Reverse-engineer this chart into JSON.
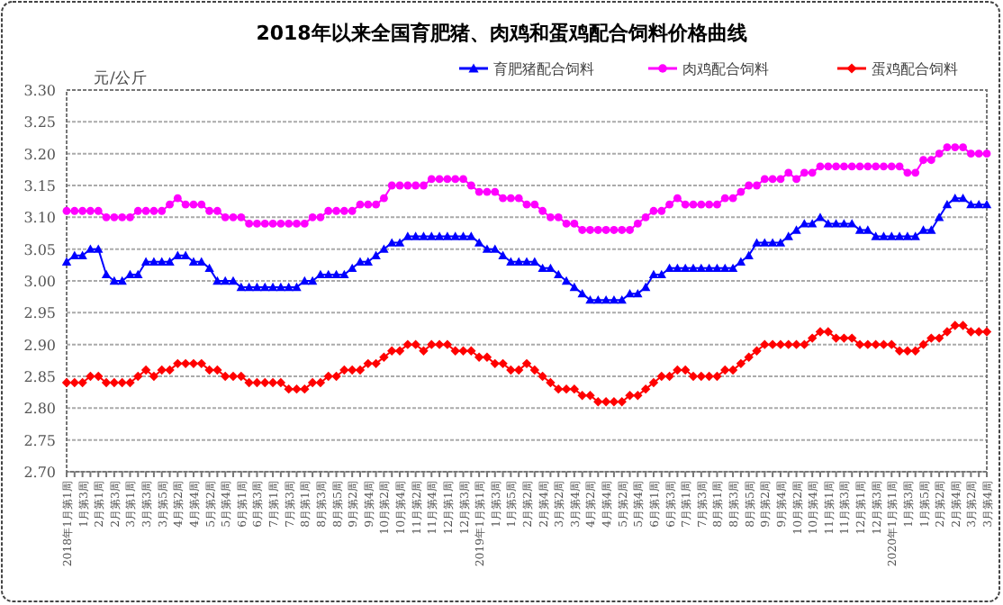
{
  "chart_data": {
    "type": "line",
    "title": "2018年以来全国育肥猪、肉鸡和蛋鸡配合饲料价格曲线",
    "ylabel": "元/公斤",
    "categories": [
      "2018年1月第1周",
      null,
      "1月第3周",
      null,
      "2月第1周",
      null,
      "2月第3周",
      null,
      "3月第1周",
      null,
      "3月第3周",
      null,
      "3月第5周",
      null,
      "4月第2周",
      null,
      "4月第4周",
      null,
      "5月第2周",
      null,
      "5月第4周",
      null,
      "6月第1周",
      null,
      "6月第3周",
      null,
      "7月第1周",
      null,
      "7月第3周",
      null,
      "8月第1周",
      null,
      "8月第3周",
      null,
      "8月第5周",
      null,
      "9月第2周",
      null,
      "9月第4周",
      null,
      "10月第2周",
      null,
      "10月第4周",
      null,
      "11月第2周",
      null,
      "11月第4周",
      null,
      "12月第1周",
      null,
      "12月第3周",
      null,
      "2019年1月第1周",
      null,
      "1月第3周",
      null,
      "1月第5周",
      null,
      "2月第2周",
      null,
      "2月第4周",
      null,
      "3月第2周",
      null,
      "3月第4周",
      null,
      "4月第2周",
      null,
      "4月第4周",
      null,
      "5月第2周",
      null,
      "5月第4周",
      null,
      "6月第1周",
      null,
      "6月第3周",
      null,
      "7月第1周",
      null,
      "7月第3周",
      null,
      "8月第1周",
      null,
      "8月第3周",
      null,
      "8月第5周",
      null,
      "9月第2周",
      null,
      "9月第4周",
      null,
      "10月第2周",
      null,
      "10月第4周",
      null,
      "11月第1周",
      null,
      "11月第3周",
      null,
      "12月第1周",
      null,
      "12月第3周",
      null,
      "2020年1月第1周",
      null,
      "1月第3周",
      null,
      "1月第5周",
      null,
      "2月第2周",
      null,
      "2月第4周",
      null,
      "3月第2周",
      null,
      "3月第4周"
    ],
    "series": [
      {
        "name": "育肥猪配合饲料",
        "color": "#0000ff",
        "marker": "triangle",
        "values": [
          3.03,
          3.04,
          3.04,
          3.05,
          3.05,
          3.01,
          3.0,
          3.0,
          3.01,
          3.01,
          3.03,
          3.03,
          3.03,
          3.03,
          3.04,
          3.04,
          3.03,
          3.03,
          3.02,
          3.0,
          3.0,
          3.0,
          2.99,
          2.99,
          2.99,
          2.99,
          2.99,
          2.99,
          2.99,
          2.99,
          3.0,
          3.0,
          3.01,
          3.01,
          3.01,
          3.01,
          3.02,
          3.03,
          3.03,
          3.04,
          3.05,
          3.06,
          3.06,
          3.07,
          3.07,
          3.07,
          3.07,
          3.07,
          3.07,
          3.07,
          3.07,
          3.07,
          3.06,
          3.05,
          3.05,
          3.04,
          3.03,
          3.03,
          3.03,
          3.03,
          3.02,
          3.02,
          3.01,
          3.0,
          2.99,
          2.98,
          2.97,
          2.97,
          2.97,
          2.97,
          2.97,
          2.98,
          2.98,
          2.99,
          3.01,
          3.01,
          3.02,
          3.02,
          3.02,
          3.02,
          3.02,
          3.02,
          3.02,
          3.02,
          3.02,
          3.03,
          3.04,
          3.06,
          3.06,
          3.06,
          3.06,
          3.07,
          3.08,
          3.09,
          3.09,
          3.1,
          3.09,
          3.09,
          3.09,
          3.09,
          3.08,
          3.08,
          3.07,
          3.07,
          3.07,
          3.07,
          3.07,
          3.07,
          3.08,
          3.08,
          3.1,
          3.12,
          3.13,
          3.13,
          3.12,
          3.12,
          3.12
        ]
      },
      {
        "name": "肉鸡配合饲料",
        "color": "#ff00ff",
        "marker": "circle",
        "values": [
          3.11,
          3.11,
          3.11,
          3.11,
          3.11,
          3.1,
          3.1,
          3.1,
          3.1,
          3.11,
          3.11,
          3.11,
          3.11,
          3.12,
          3.13,
          3.12,
          3.12,
          3.12,
          3.11,
          3.11,
          3.1,
          3.1,
          3.1,
          3.09,
          3.09,
          3.09,
          3.09,
          3.09,
          3.09,
          3.09,
          3.09,
          3.1,
          3.1,
          3.11,
          3.11,
          3.11,
          3.11,
          3.12,
          3.12,
          3.12,
          3.13,
          3.15,
          3.15,
          3.15,
          3.15,
          3.15,
          3.16,
          3.16,
          3.16,
          3.16,
          3.16,
          3.15,
          3.14,
          3.14,
          3.14,
          3.13,
          3.13,
          3.13,
          3.12,
          3.12,
          3.11,
          3.1,
          3.1,
          3.09,
          3.09,
          3.08,
          3.08,
          3.08,
          3.08,
          3.08,
          3.08,
          3.08,
          3.09,
          3.1,
          3.11,
          3.11,
          3.12,
          3.13,
          3.12,
          3.12,
          3.12,
          3.12,
          3.12,
          3.13,
          3.13,
          3.14,
          3.15,
          3.15,
          3.16,
          3.16,
          3.16,
          3.17,
          3.16,
          3.17,
          3.17,
          3.18,
          3.18,
          3.18,
          3.18,
          3.18,
          3.18,
          3.18,
          3.18,
          3.18,
          3.18,
          3.18,
          3.17,
          3.17,
          3.19,
          3.19,
          3.2,
          3.21,
          3.21,
          3.21,
          3.2,
          3.2,
          3.2
        ]
      },
      {
        "name": "蛋鸡配合饲料",
        "color": "#ff0000",
        "marker": "diamond",
        "values": [
          2.84,
          2.84,
          2.84,
          2.85,
          2.85,
          2.84,
          2.84,
          2.84,
          2.84,
          2.85,
          2.86,
          2.85,
          2.86,
          2.86,
          2.87,
          2.87,
          2.87,
          2.87,
          2.86,
          2.86,
          2.85,
          2.85,
          2.85,
          2.84,
          2.84,
          2.84,
          2.84,
          2.84,
          2.83,
          2.83,
          2.83,
          2.84,
          2.84,
          2.85,
          2.85,
          2.86,
          2.86,
          2.86,
          2.87,
          2.87,
          2.88,
          2.89,
          2.89,
          2.9,
          2.9,
          2.89,
          2.9,
          2.9,
          2.9,
          2.89,
          2.89,
          2.89,
          2.88,
          2.88,
          2.87,
          2.87,
          2.86,
          2.86,
          2.87,
          2.86,
          2.85,
          2.84,
          2.83,
          2.83,
          2.83,
          2.82,
          2.82,
          2.81,
          2.81,
          2.81,
          2.81,
          2.82,
          2.82,
          2.83,
          2.84,
          2.85,
          2.85,
          2.86,
          2.86,
          2.85,
          2.85,
          2.85,
          2.85,
          2.86,
          2.86,
          2.87,
          2.88,
          2.89,
          2.9,
          2.9,
          2.9,
          2.9,
          2.9,
          2.9,
          2.91,
          2.92,
          2.92,
          2.91,
          2.91,
          2.91,
          2.9,
          2.9,
          2.9,
          2.9,
          2.9,
          2.89,
          2.89,
          2.89,
          2.9,
          2.91,
          2.91,
          2.92,
          2.93,
          2.93,
          2.92,
          2.92,
          2.92
        ]
      }
    ],
    "ylim": [
      2.7,
      3.3
    ],
    "yticks": [
      {
        "value": 2.7,
        "label": "2.70"
      },
      {
        "value": 2.75,
        "label": "2.75"
      },
      {
        "value": 2.8,
        "label": "2.80"
      },
      {
        "value": 2.85,
        "label": "2.85"
      },
      {
        "value": 2.9,
        "label": "2.90"
      },
      {
        "value": 2.95,
        "label": "2.95"
      },
      {
        "value": 3.0,
        "label": "3.00"
      },
      {
        "value": 3.05,
        "label": "3.05"
      },
      {
        "value": 3.1,
        "label": "3.10"
      },
      {
        "value": 3.15,
        "label": "3.15"
      },
      {
        "value": 3.2,
        "label": "3.20"
      },
      {
        "value": 3.25,
        "label": "3.25"
      },
      {
        "value": 3.3,
        "label": "3.30"
      }
    ],
    "grid": "y",
    "legend": "top right"
  }
}
